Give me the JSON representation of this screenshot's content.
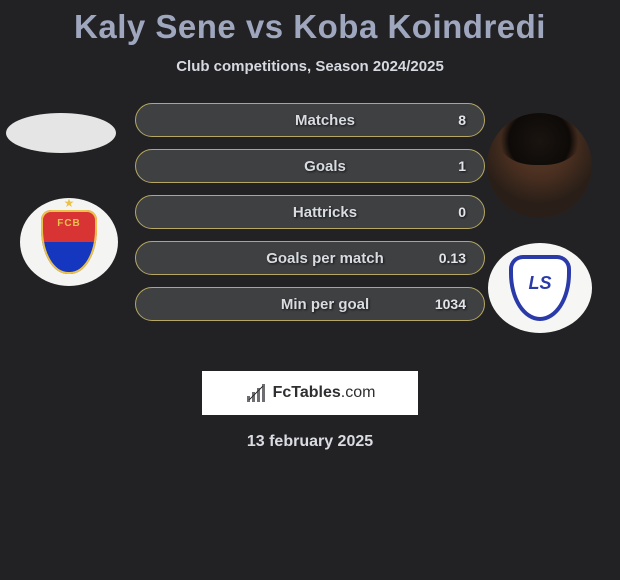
{
  "title": "Kaly Sene vs Koba Koindredi",
  "subtitle": "Club competitions, Season 2024/2025",
  "date": "13 february 2025",
  "brand": {
    "text_bold": "FcTables",
    "text_light": ".com"
  },
  "colors": {
    "background": "#222225",
    "title": "#9fa7bf",
    "subtitle": "#d6d9e0",
    "row_bg": "#3f4042",
    "row_border": "#b6a862",
    "row_text": "#d8dbe0",
    "value_text": "#e2e4e9",
    "brand_bg": "#ffffff",
    "brand_text": "#2f2f31"
  },
  "stats": [
    {
      "label": "Matches",
      "value": "8"
    },
    {
      "label": "Goals",
      "value": "1"
    },
    {
      "label": "Hattricks",
      "value": "0"
    },
    {
      "label": "Goals per match",
      "value": "0.13"
    },
    {
      "label": "Min per goal",
      "value": "1034"
    }
  ],
  "player_left": {
    "name": "Kaly Sene",
    "club": "FC Basel",
    "club_abbrev": "FCB"
  },
  "player_right": {
    "name": "Koba Koindredi",
    "club": "Lausanne-Sport",
    "club_abbrev": "LS"
  }
}
